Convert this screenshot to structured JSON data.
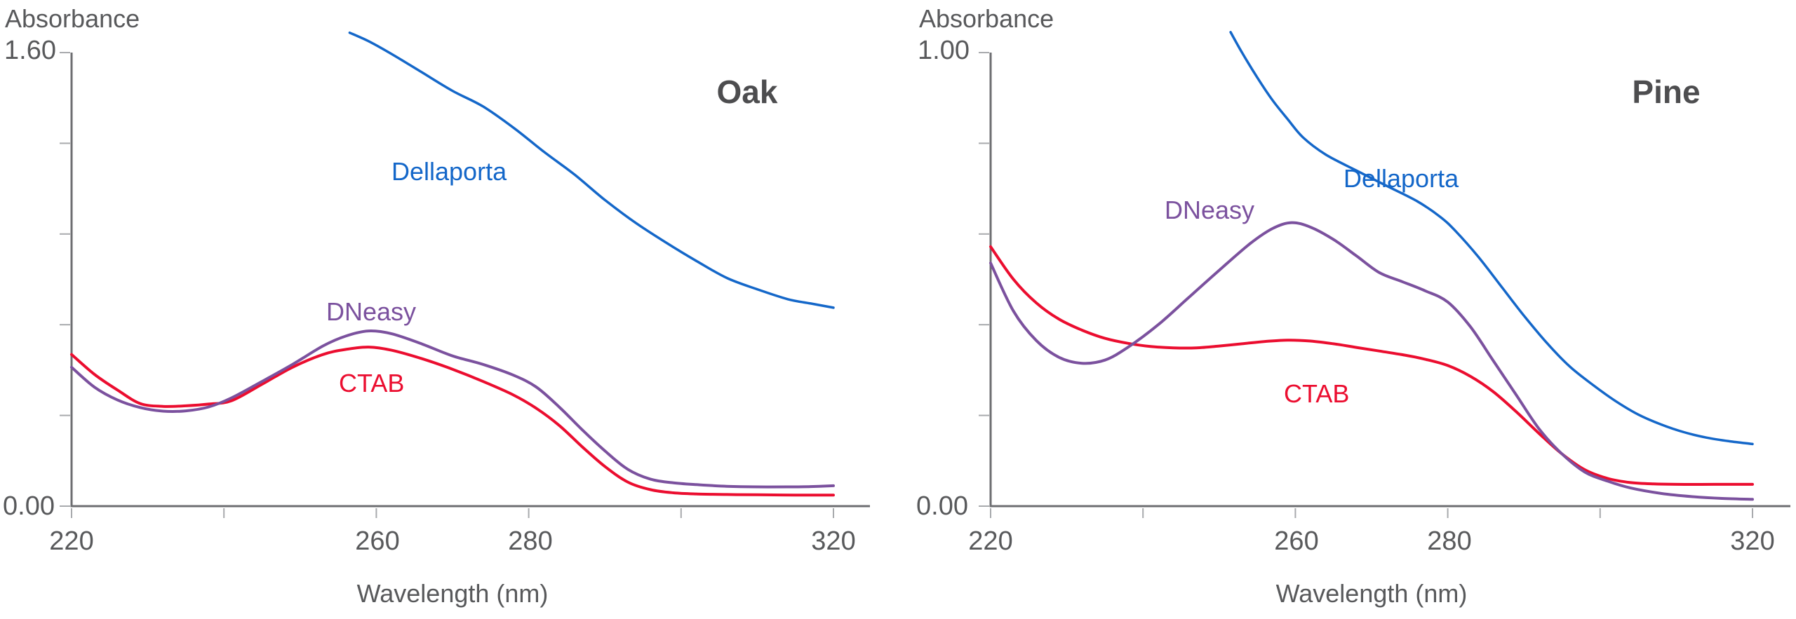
{
  "page": {
    "background": "#FFFFFF",
    "palette": {
      "axis_line": "#6D6E71",
      "tick_mark": "#A8AAAD",
      "text": "#58595B",
      "panel_title": "#4D4D4F",
      "dellaporta_blue": "#1467C9",
      "dneasy_purple": "#7B519E",
      "ctab_red": "#EB0D2F"
    }
  },
  "chart_data": [
    {
      "type": "line",
      "title": "Oak",
      "ylabel": "Absorbance",
      "xlabel": "Wavelength (nm)",
      "xlim": [
        220,
        320
      ],
      "ylim": [
        0,
        1.6
      ],
      "y_max_label": "1.60",
      "y_min_label": "0.00",
      "y_tick_count": 6,
      "grid": false,
      "legend_position": "inline-labels",
      "x_ticks": [
        {
          "value": 220,
          "label": "220"
        },
        {
          "value": 240,
          "label": ""
        },
        {
          "value": 260,
          "label": "260"
        },
        {
          "value": 280,
          "label": "280"
        },
        {
          "value": 300,
          "label": ""
        },
        {
          "value": 320,
          "label": "320"
        }
      ],
      "series": [
        {
          "name": "Dellaporta",
          "color": "#1467C9",
          "stroke_width": 3.5,
          "points": [
            [
              256.5,
              1.67
            ],
            [
              259,
              1.64
            ],
            [
              262,
              1.595
            ],
            [
              266,
              1.53
            ],
            [
              270,
              1.465
            ],
            [
              274,
              1.41
            ],
            [
              278,
              1.335
            ],
            [
              282,
              1.25
            ],
            [
              286,
              1.17
            ],
            [
              290,
              1.08
            ],
            [
              294,
              1.0
            ],
            [
              298,
              0.93
            ],
            [
              302,
              0.865
            ],
            [
              306,
              0.805
            ],
            [
              310,
              0.765
            ],
            [
              314,
              0.73
            ],
            [
              317,
              0.715
            ],
            [
              320,
              0.7
            ]
          ]
        },
        {
          "name": "CTAB",
          "color": "#EB0D2F",
          "stroke_width": 4,
          "points": [
            [
              220,
              0.535
            ],
            [
              223,
              0.465
            ],
            [
              226,
              0.41
            ],
            [
              229,
              0.362
            ],
            [
              232,
              0.352
            ],
            [
              235,
              0.354
            ],
            [
              238,
              0.36
            ],
            [
              241,
              0.372
            ],
            [
              245,
              0.43
            ],
            [
              249,
              0.49
            ],
            [
              253,
              0.535
            ],
            [
              256,
              0.553
            ],
            [
              259,
              0.561
            ],
            [
              262,
              0.55
            ],
            [
              266,
              0.52
            ],
            [
              270,
              0.483
            ],
            [
              274,
              0.44
            ],
            [
              278,
              0.392
            ],
            [
              281,
              0.345
            ],
            [
              284,
              0.285
            ],
            [
              287,
              0.21
            ],
            [
              290,
              0.14
            ],
            [
              293,
              0.085
            ],
            [
              296,
              0.058
            ],
            [
              299,
              0.047
            ],
            [
              302,
              0.043
            ],
            [
              306,
              0.041
            ],
            [
              310,
              0.04
            ],
            [
              315,
              0.039
            ],
            [
              320,
              0.039
            ]
          ]
        },
        {
          "name": "DNeasy",
          "color": "#7B519E",
          "stroke_width": 4,
          "points": [
            [
              220,
              0.49
            ],
            [
              223,
              0.42
            ],
            [
              226,
              0.375
            ],
            [
              229,
              0.348
            ],
            [
              232,
              0.335
            ],
            [
              235,
              0.336
            ],
            [
              238,
              0.35
            ],
            [
              241,
              0.382
            ],
            [
              245,
              0.44
            ],
            [
              249,
              0.5
            ],
            [
              253,
              0.565
            ],
            [
              256,
              0.6
            ],
            [
              259,
              0.618
            ],
            [
              262,
              0.608
            ],
            [
              266,
              0.572
            ],
            [
              270,
              0.53
            ],
            [
              274,
              0.5
            ],
            [
              278,
              0.462
            ],
            [
              281,
              0.42
            ],
            [
              284,
              0.35
            ],
            [
              287,
              0.27
            ],
            [
              290,
              0.195
            ],
            [
              293,
              0.13
            ],
            [
              296,
              0.095
            ],
            [
              299,
              0.082
            ],
            [
              302,
              0.076
            ],
            [
              306,
              0.07
            ],
            [
              310,
              0.068
            ],
            [
              314,
              0.068
            ],
            [
              317,
              0.069
            ],
            [
              320,
              0.072
            ]
          ]
        }
      ]
    },
    {
      "type": "line",
      "title": "Pine",
      "ylabel": "Absorbance",
      "xlabel": "Wavelength (nm)",
      "xlim": [
        220,
        320
      ],
      "ylim": [
        0,
        1.0
      ],
      "y_max_label": "1.00",
      "y_min_label": "0.00",
      "y_tick_count": 6,
      "grid": false,
      "legend_position": "inline-labels",
      "x_ticks": [
        {
          "value": 220,
          "label": "220"
        },
        {
          "value": 240,
          "label": ""
        },
        {
          "value": 260,
          "label": "260"
        },
        {
          "value": 280,
          "label": "280"
        },
        {
          "value": 300,
          "label": ""
        },
        {
          "value": 320,
          "label": "320"
        }
      ],
      "series": [
        {
          "name": "Dellaporta",
          "color": "#1467C9",
          "stroke_width": 3.5,
          "points": [
            [
              251.5,
              1.045
            ],
            [
              253,
              1.0
            ],
            [
              255,
              0.945
            ],
            [
              257,
              0.895
            ],
            [
              259,
              0.853
            ],
            [
              261,
              0.813
            ],
            [
              264,
              0.775
            ],
            [
              268,
              0.74
            ],
            [
              272,
              0.706
            ],
            [
              276,
              0.672
            ],
            [
              279,
              0.638
            ],
            [
              281,
              0.607
            ],
            [
              284,
              0.55
            ],
            [
              287,
              0.485
            ],
            [
              290,
              0.42
            ],
            [
              293,
              0.36
            ],
            [
              296,
              0.308
            ],
            [
              299,
              0.268
            ],
            [
              302,
              0.232
            ],
            [
              305,
              0.202
            ],
            [
              308,
              0.18
            ],
            [
              311,
              0.163
            ],
            [
              314,
              0.151
            ],
            [
              317,
              0.143
            ],
            [
              320,
              0.137
            ]
          ]
        },
        {
          "name": "CTAB",
          "color": "#EB0D2F",
          "stroke_width": 4,
          "points": [
            [
              220,
              0.572
            ],
            [
              223,
              0.5
            ],
            [
              226,
              0.448
            ],
            [
              229,
              0.412
            ],
            [
              232,
              0.388
            ],
            [
              235,
              0.37
            ],
            [
              238,
              0.359
            ],
            [
              241,
              0.352
            ],
            [
              244,
              0.349
            ],
            [
              247,
              0.349
            ],
            [
              250,
              0.353
            ],
            [
              253,
              0.358
            ],
            [
              256,
              0.363
            ],
            [
              259,
              0.366
            ],
            [
              262,
              0.364
            ],
            [
              265,
              0.358
            ],
            [
              268,
              0.35
            ],
            [
              271,
              0.342
            ],
            [
              274,
              0.334
            ],
            [
              277,
              0.324
            ],
            [
              280,
              0.31
            ],
            [
              283,
              0.286
            ],
            [
              286,
              0.252
            ],
            [
              289,
              0.208
            ],
            [
              292,
              0.16
            ],
            [
              295,
              0.115
            ],
            [
              298,
              0.08
            ],
            [
              301,
              0.061
            ],
            [
              304,
              0.052
            ],
            [
              307,
              0.049
            ],
            [
              310,
              0.048
            ],
            [
              315,
              0.048
            ],
            [
              320,
              0.048
            ]
          ]
        },
        {
          "name": "DNeasy",
          "color": "#7B519E",
          "stroke_width": 4,
          "points": [
            [
              220,
              0.536
            ],
            [
              223,
              0.43
            ],
            [
              226,
              0.365
            ],
            [
              229,
              0.328
            ],
            [
              232,
              0.315
            ],
            [
              235,
              0.322
            ],
            [
              238,
              0.35
            ],
            [
              242,
              0.4
            ],
            [
              246,
              0.46
            ],
            [
              250,
              0.52
            ],
            [
              254,
              0.578
            ],
            [
              257,
              0.612
            ],
            [
              259.5,
              0.625
            ],
            [
              262,
              0.615
            ],
            [
              265,
              0.588
            ],
            [
              268,
              0.552
            ],
            [
              271,
              0.515
            ],
            [
              274,
              0.495
            ],
            [
              277,
              0.475
            ],
            [
              280,
              0.45
            ],
            [
              283,
              0.395
            ],
            [
              286,
              0.32
            ],
            [
              289,
              0.245
            ],
            [
              292,
              0.17
            ],
            [
              295,
              0.115
            ],
            [
              298,
              0.075
            ],
            [
              301,
              0.055
            ],
            [
              304,
              0.04
            ],
            [
              308,
              0.028
            ],
            [
              312,
              0.021
            ],
            [
              316,
              0.017
            ],
            [
              320,
              0.015
            ]
          ]
        }
      ]
    }
  ]
}
